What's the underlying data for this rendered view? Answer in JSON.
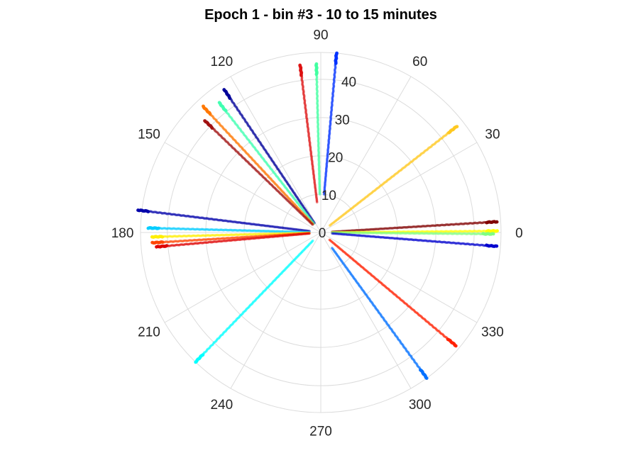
{
  "chart_data": {
    "type": "scatter",
    "subtype": "polar",
    "title": "Epoch 1 - bin #3 - 10 to 15 minutes",
    "theta_unit": "degrees",
    "r_range": [
      0,
      47
    ],
    "grid": true,
    "theta_ticks": [
      {
        "deg": 0,
        "label": "0"
      },
      {
        "deg": 30,
        "label": "30"
      },
      {
        "deg": 60,
        "label": "60"
      },
      {
        "deg": 90,
        "label": "90"
      },
      {
        "deg": 120,
        "label": "120"
      },
      {
        "deg": 150,
        "label": "150"
      },
      {
        "deg": 180,
        "label": "180"
      },
      {
        "deg": 210,
        "label": "210"
      },
      {
        "deg": 240,
        "label": "240"
      },
      {
        "deg": 270,
        "label": "270"
      },
      {
        "deg": 300,
        "label": "300"
      },
      {
        "deg": 330,
        "label": "330"
      }
    ],
    "r_ticks": [
      {
        "r": 0,
        "label": "0"
      },
      {
        "r": 10,
        "label": "10"
      },
      {
        "r": 20,
        "label": "20"
      },
      {
        "r": 30,
        "label": "30"
      },
      {
        "r": 40,
        "label": "40"
      }
    ],
    "series": [
      {
        "color": "#800000",
        "theta": 3.5,
        "r_start": 3,
        "r_end": 46
      },
      {
        "color": "#ffff00",
        "theta": 0.5,
        "r_start": 3,
        "r_end": 46
      },
      {
        "color": "#80ff80",
        "theta": -0.5,
        "r_start": 3,
        "r_end": 45
      },
      {
        "color": "#0000cd",
        "theta": -4.5,
        "r_start": 3,
        "r_end": 46
      },
      {
        "color": "#ffc820",
        "theta": 38,
        "r_start": 3,
        "r_end": 45
      },
      {
        "color": "#0030ff",
        "theta": 85,
        "r_start": 10,
        "r_end": 47
      },
      {
        "color": "#40ffa0",
        "theta": 91.5,
        "r_start": 10,
        "r_end": 44
      },
      {
        "color": "#dd1010",
        "theta": 97,
        "r_start": 8,
        "r_end": 44
      },
      {
        "color": "#000099",
        "theta": 124,
        "r_start": 3,
        "r_end": 45
      },
      {
        "color": "#40ffb0",
        "theta": 128,
        "r_start": 3,
        "r_end": 43
      },
      {
        "color": "#ff7700",
        "theta": 133,
        "r_start": 3,
        "r_end": 45
      },
      {
        "color": "#a01010",
        "theta": 136,
        "r_start": 3,
        "r_end": 42
      },
      {
        "color": "#0000aa",
        "theta": 173,
        "r_start": 3,
        "r_end": 48
      },
      {
        "color": "#00ccff",
        "theta": 178.5,
        "r_start": 3,
        "r_end": 45
      },
      {
        "color": "#ffee00",
        "theta": 181.5,
        "r_start": 3,
        "r_end": 44
      },
      {
        "color": "#ff4500",
        "theta": 183.5,
        "r_start": 3,
        "r_end": 44
      },
      {
        "color": "#dd0000",
        "theta": 185,
        "r_start": 3,
        "r_end": 43
      },
      {
        "color": "#00ffff",
        "theta": 226,
        "r_start": 3,
        "r_end": 47
      },
      {
        "color": "#0070ff",
        "theta": 306,
        "r_start": 5,
        "r_end": 47
      },
      {
        "color": "#ff2000",
        "theta": 320,
        "r_start": 3,
        "r_end": 46
      }
    ]
  }
}
